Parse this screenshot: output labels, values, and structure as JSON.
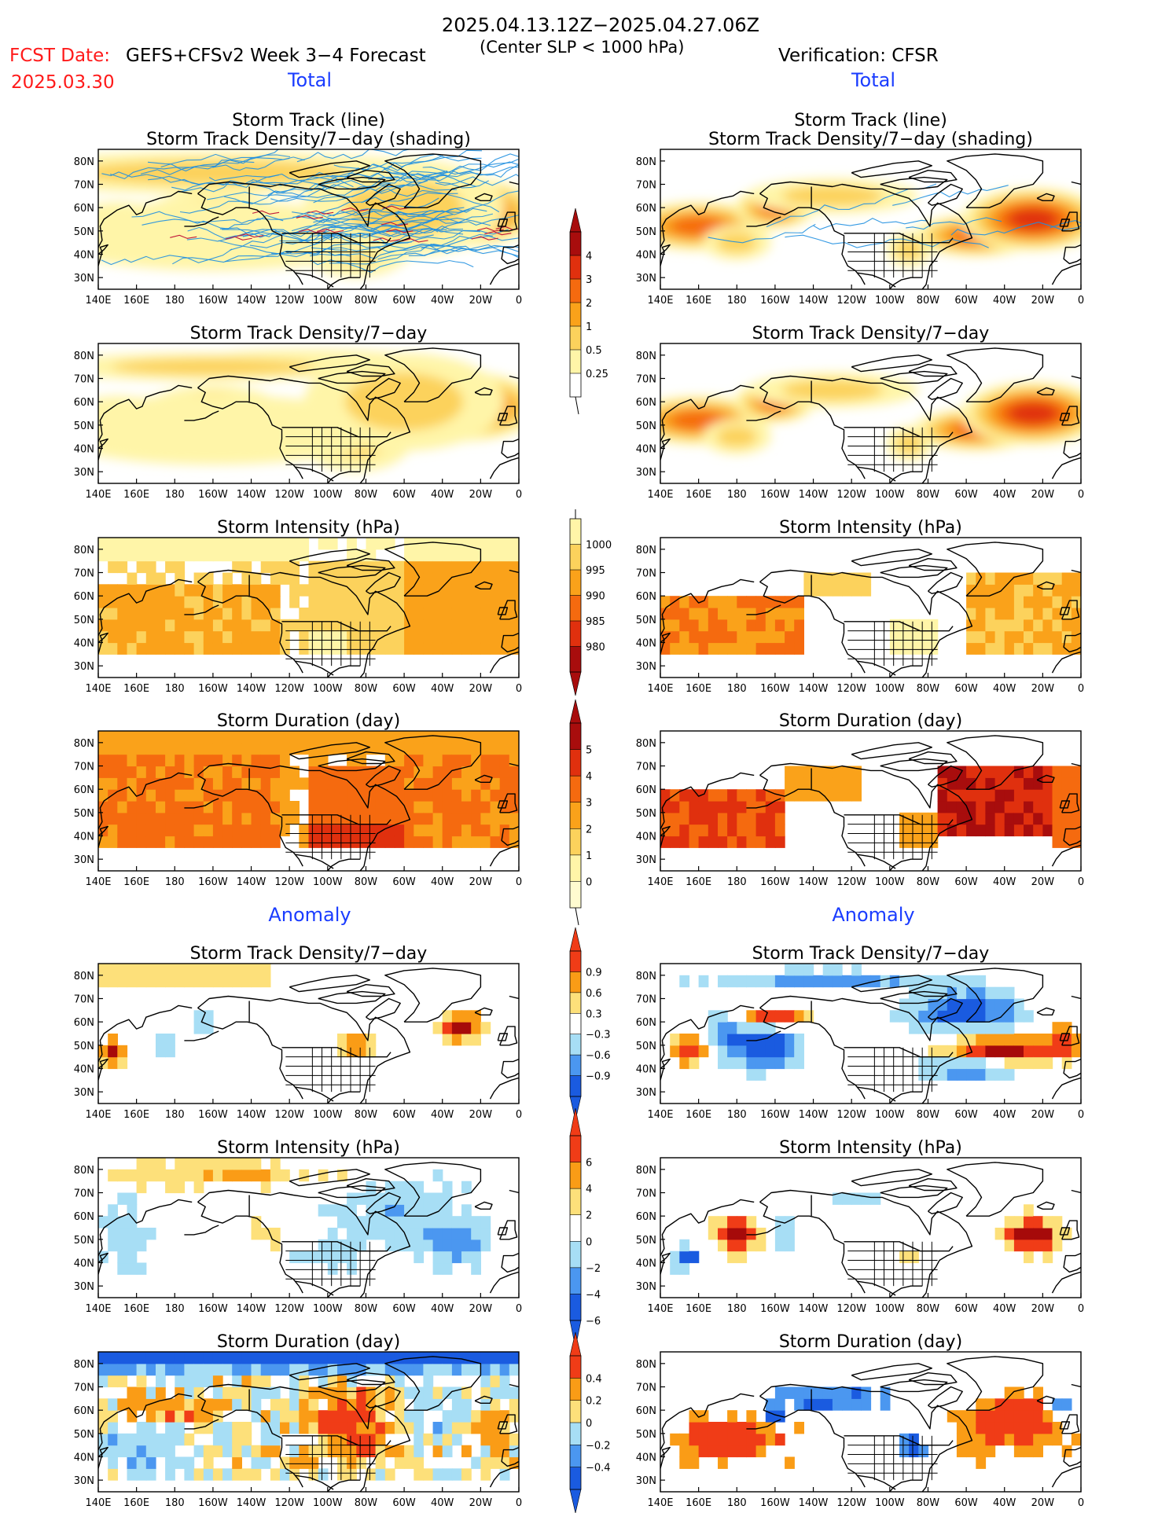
{
  "header": {
    "date_range": "2025.04.13.12Z−2025.04.27.06Z",
    "fcst_label": "FCST Date:",
    "fcst_date": "2025.03.30",
    "model_title": "GEFS+CFSv2 Week 3−4 Forecast",
    "criterion": "(Center SLP < 1000 hPa)",
    "verification": "Verification: CFSR"
  },
  "sections": {
    "total": "Total",
    "anomaly": "Anomaly"
  },
  "panel_titles": {
    "track_line": "Storm Track (line)",
    "track_density_shading": "Storm Track Density/7−day (shading)",
    "track_density": "Storm Track Density/7−day",
    "intensity": "Storm Intensity (hPa)",
    "duration": "Storm Duration (day)"
  },
  "axes": {
    "lon_ticks": [
      "140E",
      "160E",
      "180",
      "160W",
      "140W",
      "120W",
      "100W",
      "80W",
      "60W",
      "40W",
      "20W",
      "0"
    ],
    "lat_ticks": [
      "80N",
      "70N",
      "60N",
      "50N",
      "40N",
      "30N"
    ]
  },
  "colorbars": {
    "track_density_total": [
      "0.25",
      "0.5",
      "1",
      "2",
      "3",
      "4"
    ],
    "intensity_total": [
      "1000",
      "995",
      "990",
      "985",
      "980"
    ],
    "duration_total": [
      "0",
      "1",
      "2",
      "3",
      "4",
      "5"
    ],
    "track_density_anomaly": [
      "0.9",
      "0.6",
      "0.3",
      "−0.3",
      "−0.6",
      "−0.9"
    ],
    "intensity_anomaly": [
      "6",
      "4",
      "2",
      "0",
      "−2",
      "−4",
      "−6"
    ],
    "duration_anomaly": [
      "0.4",
      "0.2",
      "0",
      "−0.2",
      "−0.4"
    ]
  },
  "colors": {
    "title_red": "#ff1a1a",
    "section_blue": "#1a3cff",
    "seq_total": [
      "#fff5a8",
      "#fcd25c",
      "#faa21a",
      "#f56a0f",
      "#e0300e",
      "#a80d0d"
    ],
    "div_anom": [
      "#1a5be0",
      "#4b97f0",
      "#a7def5",
      "#ffffff",
      "#fde07a",
      "#fa9c16",
      "#f03c17",
      "#a60a0a"
    ]
  }
}
